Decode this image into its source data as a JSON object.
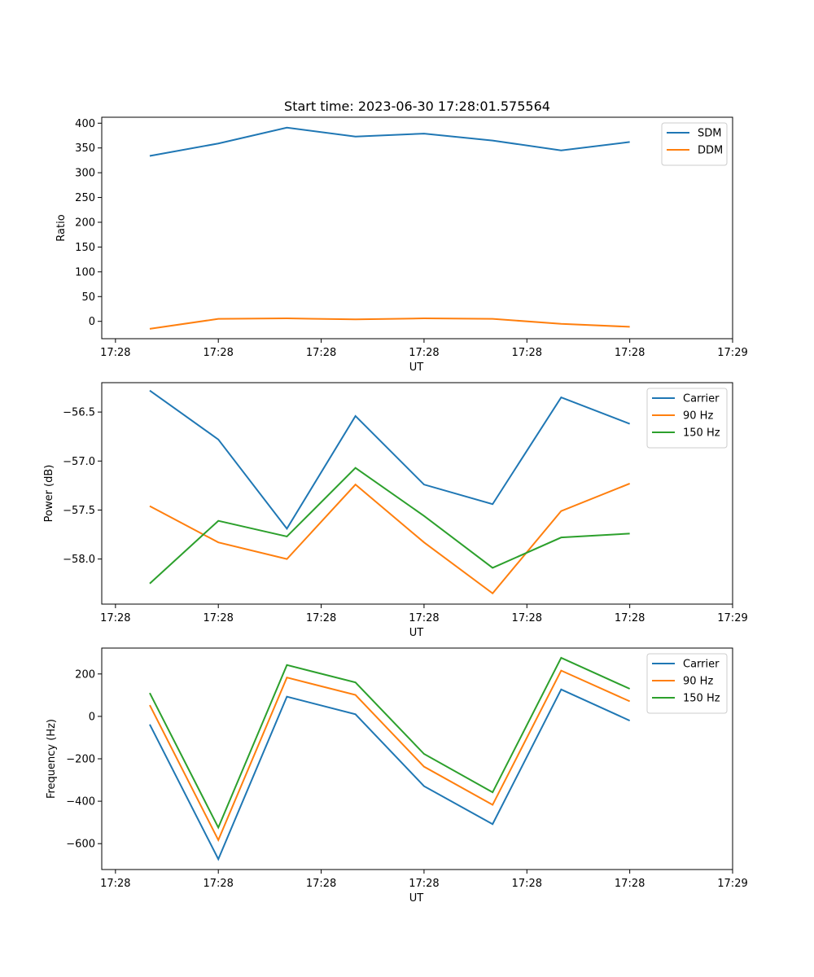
{
  "chart_data": [
    {
      "type": "line",
      "title": "Start time: 2023-06-30 17:28:01.575564",
      "xlabel": "UT",
      "ylabel": "Ratio",
      "x": [
        1,
        2,
        3,
        4,
        5,
        6,
        7,
        8
      ],
      "xlim": [
        0.3,
        9.5
      ],
      "xticks": [
        0.5,
        2,
        3.5,
        5,
        6.5,
        8,
        9.5
      ],
      "xtick_labels": [
        "17:28",
        "17:28",
        "17:28",
        "17:28",
        "17:28",
        "17:28",
        "17:29"
      ],
      "ylim": [
        -35,
        412
      ],
      "yticks": [
        0,
        50,
        100,
        150,
        200,
        250,
        300,
        350,
        400
      ],
      "yticks_labels": [
        "0",
        "50",
        "100",
        "150",
        "200",
        "250",
        "300",
        "350",
        "400"
      ],
      "legend": "top-right",
      "series": [
        {
          "name": "SDM",
          "color": "#1f77b4",
          "values": [
            334,
            359,
            391,
            373,
            379,
            365,
            345,
            362
          ]
        },
        {
          "name": "DDM",
          "color": "#ff7f0e",
          "values": [
            -15,
            5,
            6,
            4,
            6,
            5,
            -5,
            -11
          ]
        }
      ]
    },
    {
      "type": "line",
      "title": "",
      "xlabel": "UT",
      "ylabel": "Power (dB)",
      "x": [
        1,
        2,
        3,
        4,
        5,
        6,
        7,
        8
      ],
      "xlim": [
        0.3,
        9.5
      ],
      "xticks": [
        0.5,
        2,
        3.5,
        5,
        6.5,
        8,
        9.5
      ],
      "xtick_labels": [
        "17:28",
        "17:28",
        "17:28",
        "17:28",
        "17:28",
        "17:28",
        "17:29"
      ],
      "ylim": [
        -58.46,
        -56.2
      ],
      "yticks": [
        -58.0,
        -57.5,
        -57.0,
        -56.5
      ],
      "yticks_labels": [
        "−58.0",
        "−57.5",
        "−57.0",
        "−56.5"
      ],
      "legend": "top-right",
      "series": [
        {
          "name": "Carrier",
          "color": "#1f77b4",
          "values": [
            -56.28,
            -56.78,
            -57.69,
            -56.54,
            -57.24,
            -57.44,
            -56.35,
            -56.62
          ]
        },
        {
          "name": "90 Hz",
          "color": "#ff7f0e",
          "values": [
            -57.46,
            -57.83,
            -58.0,
            -57.24,
            -57.83,
            -58.35,
            -57.51,
            -57.23
          ]
        },
        {
          "name": "150 Hz",
          "color": "#2ca02c",
          "values": [
            -58.25,
            -57.61,
            -57.77,
            -57.07,
            -57.56,
            -58.09,
            -57.78,
            -57.74
          ]
        }
      ]
    },
    {
      "type": "line",
      "title": "",
      "xlabel": "UT",
      "ylabel": "Frequency (Hz)",
      "x": [
        1,
        2,
        3,
        4,
        5,
        6,
        7,
        8
      ],
      "xlim": [
        0.3,
        9.5
      ],
      "xticks": [
        0.5,
        2,
        3.5,
        5,
        6.5,
        8,
        9.5
      ],
      "xtick_labels": [
        "17:28",
        "17:28",
        "17:28",
        "17:28",
        "17:28",
        "17:28",
        "17:29"
      ],
      "ylim": [
        -722,
        322
      ],
      "yticks": [
        -600,
        -400,
        -200,
        0,
        200
      ],
      "yticks_labels": [
        "−600",
        "−400",
        "−200",
        "0",
        "200"
      ],
      "legend": "top-right",
      "series": [
        {
          "name": "Carrier",
          "color": "#1f77b4",
          "values": [
            -38,
            -673,
            93,
            10,
            -329,
            -508,
            127,
            -20
          ]
        },
        {
          "name": "90 Hz",
          "color": "#ff7f0e",
          "values": [
            53,
            -583,
            183,
            101,
            -237,
            -417,
            216,
            71
          ]
        },
        {
          "name": "150 Hz",
          "color": "#2ca02c",
          "values": [
            110,
            -524,
            242,
            160,
            -177,
            -358,
            276,
            130
          ]
        }
      ]
    }
  ]
}
